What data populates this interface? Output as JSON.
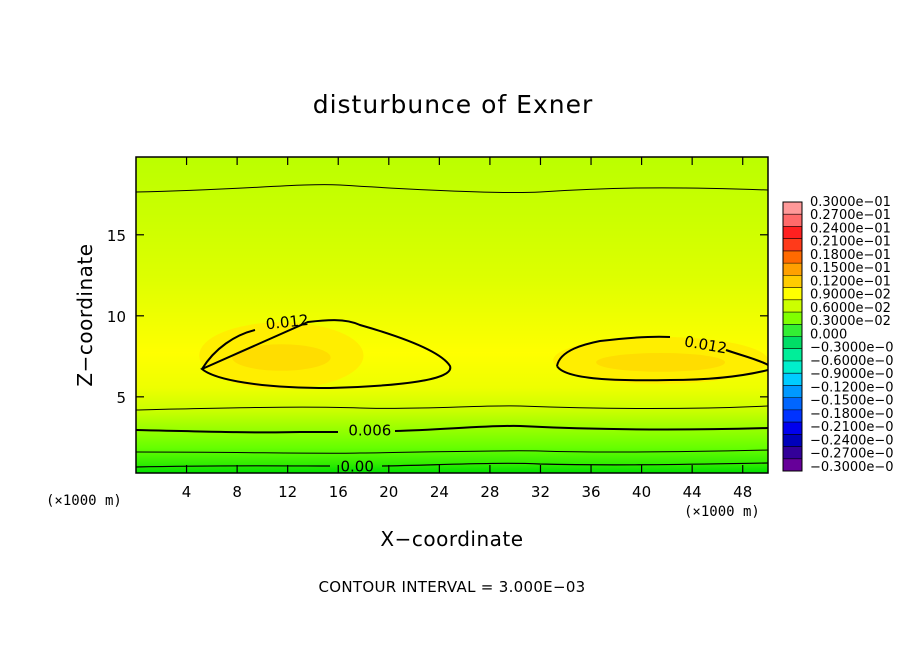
{
  "chart_data": {
    "type": "heatmap",
    "title": "disturbunce of Exner",
    "xlabel": "X−coordinate",
    "ylabel": "Z−coordinate",
    "x_unit": "(×1000 m)",
    "y_unit": "(×1000 m)",
    "xlim": [
      0,
      50
    ],
    "ylim": [
      0.3,
      19.8
    ],
    "x_ticks": [
      4,
      8,
      12,
      16,
      20,
      24,
      28,
      32,
      36,
      40,
      44,
      48
    ],
    "y_ticks": [
      5,
      10,
      15
    ],
    "contour_interval_text": "CONTOUR INTERVAL = 3.000E−03",
    "contour_labels": [
      {
        "text": "0.012",
        "x": 12.0,
        "z": 9.3
      },
      {
        "text": "0.012",
        "x": 45.0,
        "z": 7.9
      },
      {
        "text": "0.006",
        "x": 18.5,
        "z": 2.6
      },
      {
        "text": "0.00",
        "x": 17.5,
        "z": 0.4
      }
    ],
    "regions": [
      {
        "level": 0.012,
        "x_range": [
          5,
          18
        ],
        "z_range": [
          5.5,
          9.6
        ]
      },
      {
        "level": 0.012,
        "x_range": [
          33,
          50
        ],
        "z_range": [
          5.8,
          8.7
        ]
      }
    ],
    "legend_labels": [
      "0.3000e−01",
      "0.2700e−01",
      "0.2400e−01",
      "0.2100e−01",
      "0.1800e−01",
      "0.1500e−01",
      "0.1200e−01",
      "0.9000e−02",
      "0.6000e−02",
      "0.3000e−02",
      "0.000",
      "−0.3000e−0",
      "−0.6000e−0",
      "−0.9000e−0",
      "−0.1200e−0",
      "−0.1500e−0",
      "−0.1800e−0",
      "−0.2100e−0",
      "−0.2400e−0",
      "−0.2700e−0",
      "−0.3000e−0"
    ],
    "legend_colors": [
      "#ff9999",
      "#ff6a6a",
      "#ff2020",
      "#ff3a1a",
      "#ff6a00",
      "#ffa000",
      "#ffcc00",
      "#ffff00",
      "#ccff00",
      "#80ff00",
      "#33ee33",
      "#00dd66",
      "#00ee99",
      "#00eecc",
      "#00ccff",
      "#0099ff",
      "#0066ff",
      "#0033ff",
      "#0000ee",
      "#0000bb",
      "#330099",
      "#660099"
    ]
  }
}
